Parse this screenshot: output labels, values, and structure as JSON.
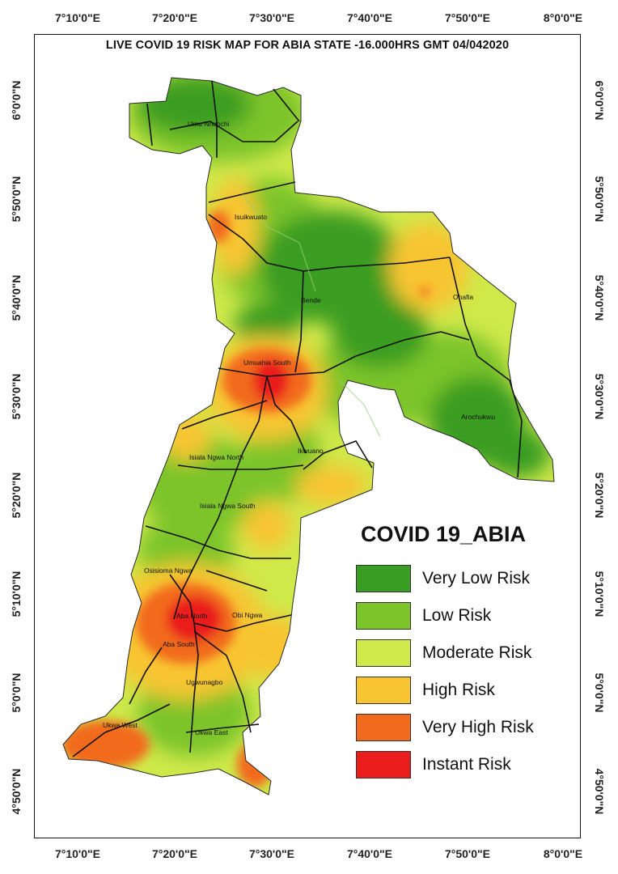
{
  "title": "LIVE COVID 19 RISK MAP FOR ABIA STATE -16.000HRS GMT 04/042020",
  "longitude_ticks": [
    "7°10'0\"E",
    "7°20'0\"E",
    "7°30'0\"E",
    "7°40'0\"E",
    "7°50'0\"E",
    "8°0'0\"E"
  ],
  "latitude_ticks": [
    "6°0'0\"N",
    "5°50'0\"N",
    "5°40'0\"N",
    "5°30'0\"N",
    "5°20'0\"N",
    "5°10'0\"N",
    "5°0'0\"N",
    "4°50'0\"N"
  ],
  "legend": {
    "title": "COVID 19_ABIA",
    "items": [
      {
        "label": "Very Low Risk",
        "color": "#3a9d23"
      },
      {
        "label": "Low Risk",
        "color": "#7cc429"
      },
      {
        "label": "Moderate Risk",
        "color": "#cfe94a"
      },
      {
        "label": "High Risk",
        "color": "#f8c532"
      },
      {
        "label": "Very High Risk",
        "color": "#f26a1e"
      },
      {
        "label": "Instant  Risk",
        "color": "#ea1c1c"
      }
    ]
  },
  "places": {
    "umu_nneochi": "Umu Nneochi",
    "isuikwuato": "Isuikwuato",
    "bende": "Bende",
    "ohafia": "Ohafia",
    "umuahia_south": "Umuahia South",
    "arochukwu": "Arochukwu",
    "ikwuano": "Ikwuano",
    "isiala_ngwa_north": "Isiala Ngwa North",
    "isiala_ngwa_south": "Isiala Ngwa South",
    "osisioma_ngwa": "Osisioma Ngwa",
    "aba_north": "Aba North",
    "obi_ngwa": "Obi Ngwa",
    "aba_south": "Aba South",
    "ugwunagbo": "Ugwunagbo",
    "ukwa_west": "Ukwa West",
    "ukwa_east": "Ukwa East"
  }
}
